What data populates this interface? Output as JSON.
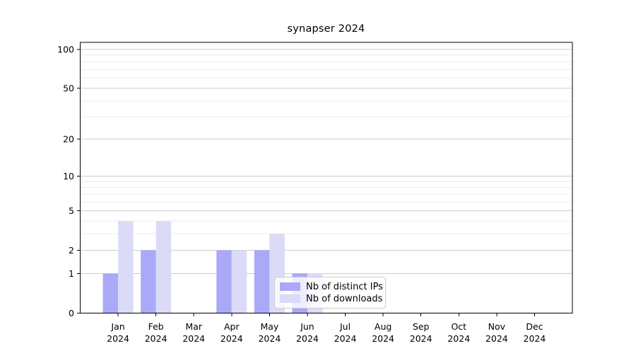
{
  "figure": {
    "title": "synapser 2024",
    "background": "#ffffff"
  },
  "legend": {
    "items": [
      {
        "label": "Nb of distinct IPs",
        "color": "#a9a9f8"
      },
      {
        "label": "Nb of downloads",
        "color": "#dbdbf8"
      }
    ]
  },
  "chart_data": {
    "type": "bar",
    "title": "synapser 2024",
    "categories": [
      "Jan",
      "Feb",
      "Mar",
      "Apr",
      "May",
      "Jun",
      "Jul",
      "Aug",
      "Sep",
      "Oct",
      "Nov",
      "Dec"
    ],
    "year_label": "2024",
    "series": [
      {
        "name": "Nb of distinct IPs",
        "color": "#a9a9f8",
        "values": [
          1,
          2,
          0,
          2,
          2,
          1,
          0,
          0,
          0,
          0,
          0,
          0
        ]
      },
      {
        "name": "Nb of downloads",
        "color": "#dbdbf8",
        "values": [
          4,
          4,
          0,
          2,
          3,
          1,
          0,
          0,
          0,
          0,
          0,
          0
        ]
      }
    ],
    "yscale": "log1p",
    "ylim": [
      0,
      113
    ],
    "yticks": [
      0,
      1,
      2,
      5,
      10,
      20,
      50,
      100
    ],
    "minor_yticks": [
      3,
      4,
      6,
      7,
      8,
      9,
      30,
      40,
      60,
      70,
      80,
      90
    ],
    "xlabel": "",
    "ylabel": "",
    "grid": true,
    "legend_position": "lower-center",
    "colors": {
      "major_grid": "#cccccc",
      "minor_grid": "#ebebeb",
      "axis": "#000000",
      "text": "#000000"
    }
  }
}
